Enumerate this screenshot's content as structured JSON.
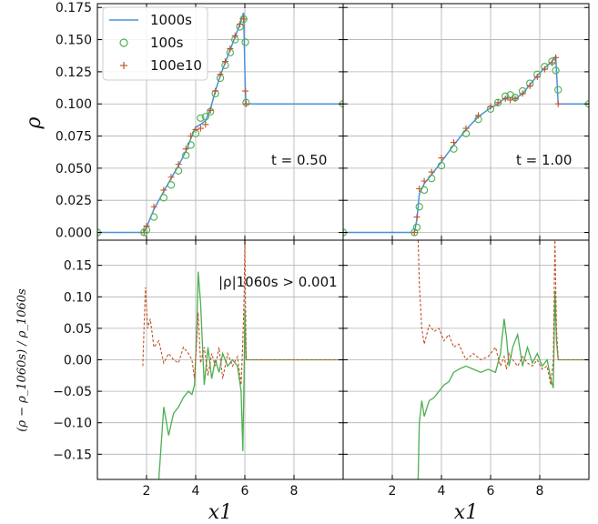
{
  "chart_data": {
    "type": "line",
    "layout": "2x2 grid, shared axes",
    "xlim": [
      0,
      10
    ],
    "x_ticks": [
      2,
      4,
      6,
      8
    ],
    "xlabel": "x1",
    "top": {
      "ylabel": "ρ",
      "ylim": [
        -0.006,
        0.178
      ],
      "yticks": [
        0.0,
        0.025,
        0.05,
        0.075,
        0.1,
        0.125,
        0.15,
        0.175
      ],
      "ytick_labels": [
        "0.000",
        "0.025",
        "0.050",
        "0.075",
        "0.100",
        "0.125",
        "0.150",
        "0.175"
      ]
    },
    "bottom": {
      "ylabel": "(ρ − ρ_1060s) / ρ_1060s",
      "ylim": [
        -0.19,
        0.19
      ],
      "yticks": [
        -0.15,
        -0.1,
        -0.05,
        0.0,
        0.05,
        0.1,
        0.15
      ],
      "ytick_labels": [
        "−0.15",
        "−0.10",
        "−0.05",
        "0.00",
        "0.05",
        "0.10",
        "0.15"
      ]
    },
    "legend": {
      "position": "upper-left",
      "entries": [
        {
          "label": "1000s",
          "style": "line",
          "color": "#4a90d9"
        },
        {
          "label": "100s",
          "style": "open-circle",
          "color": "#4caf50"
        },
        {
          "label": "100e10",
          "style": "plus",
          "color": "#c0562b"
        }
      ]
    },
    "annotations": {
      "t_left": "t = 0.50",
      "t_right": "t = 1.00",
      "threshold": "|ρ|1060s > 0.001"
    },
    "panels": [
      {
        "time": "t = 0.50",
        "density": {
          "x": [
            0,
            1.9,
            2.0,
            2.3,
            2.7,
            3.0,
            3.3,
            3.6,
            3.8,
            4.0,
            4.2,
            4.4,
            4.6,
            4.8,
            5.0,
            5.2,
            5.4,
            5.6,
            5.8,
            5.95,
            6.02,
            6.05,
            10
          ],
          "1000s": [
            0.0,
            0.0,
            0.004,
            0.018,
            0.032,
            0.042,
            0.052,
            0.063,
            0.073,
            0.082,
            0.084,
            0.087,
            0.096,
            0.11,
            0.122,
            0.132,
            0.142,
            0.152,
            0.162,
            0.171,
            0.11,
            0.1,
            0.1
          ],
          "100s": [
            0.0,
            0.0,
            0.002,
            0.012,
            0.027,
            0.037,
            0.048,
            0.06,
            0.068,
            0.077,
            0.089,
            0.09,
            0.094,
            0.108,
            0.12,
            0.13,
            0.14,
            0.15,
            0.16,
            0.166,
            0.148,
            0.101,
            0.1
          ],
          "100e10": [
            0.0,
            0.0,
            0.005,
            0.02,
            0.033,
            0.043,
            0.053,
            0.065,
            0.075,
            0.08,
            0.081,
            0.084,
            0.095,
            0.11,
            0.123,
            0.133,
            0.143,
            0.153,
            0.162,
            0.166,
            0.11,
            0.1,
            0.1
          ]
        },
        "rel_diff": {
          "x": [
            1.85,
            1.95,
            2.05,
            2.15,
            2.3,
            2.5,
            2.7,
            2.9,
            3.1,
            3.3,
            3.5,
            3.7,
            3.85,
            3.95,
            4.05,
            4.1,
            4.2,
            4.35,
            4.5,
            4.65,
            4.8,
            4.95,
            5.1,
            5.3,
            5.5,
            5.7,
            5.85,
            5.92,
            5.97,
            6.0,
            6.05,
            6.15,
            10
          ],
          "100s": [
            null,
            null,
            null,
            null,
            null,
            -0.19,
            -0.075,
            -0.12,
            -0.085,
            -0.075,
            -0.06,
            -0.05,
            -0.055,
            -0.04,
            0.05,
            0.14,
            0.09,
            -0.04,
            0.02,
            -0.03,
            0.0,
            -0.02,
            0.01,
            -0.01,
            0.0,
            -0.01,
            -0.05,
            -0.145,
            -0.02,
            0.08,
            0.0,
            0.0,
            0.0
          ],
          "100e10": [
            -0.01,
            0.115,
            0.05,
            0.065,
            0.02,
            0.03,
            -0.005,
            0.01,
            0.0,
            -0.005,
            0.02,
            0.01,
            0.0,
            -0.03,
            0.035,
            0.075,
            -0.005,
            0.02,
            -0.025,
            0.01,
            -0.01,
            0.02,
            -0.03,
            0.01,
            -0.01,
            0.005,
            -0.04,
            0.03,
            0.1,
            0.19,
            0.0,
            0.0,
            0.0
          ]
        }
      },
      {
        "time": "t = 1.00",
        "density": {
          "x": [
            0,
            2.9,
            3.0,
            3.1,
            3.3,
            3.6,
            4.0,
            4.5,
            5.0,
            5.5,
            6.0,
            6.3,
            6.6,
            6.8,
            7.0,
            7.3,
            7.6,
            7.9,
            8.2,
            8.5,
            8.65,
            8.75,
            10
          ],
          "1000s": [
            0.0,
            0.0,
            0.01,
            0.03,
            0.038,
            0.045,
            0.055,
            0.068,
            0.08,
            0.09,
            0.097,
            0.1,
            0.105,
            0.105,
            0.104,
            0.108,
            0.115,
            0.122,
            0.128,
            0.133,
            0.137,
            0.1,
            0.1
          ],
          "100s": [
            0.0,
            0.0,
            0.004,
            0.02,
            0.033,
            0.042,
            0.052,
            0.065,
            0.077,
            0.088,
            0.096,
            0.101,
            0.106,
            0.107,
            0.105,
            0.11,
            0.116,
            0.123,
            0.129,
            0.133,
            0.126,
            0.111,
            0.1
          ],
          "100e10": [
            0.0,
            0.0,
            0.012,
            0.034,
            0.04,
            0.047,
            0.058,
            0.07,
            0.081,
            0.091,
            0.098,
            0.101,
            0.104,
            0.103,
            0.104,
            0.108,
            0.114,
            0.121,
            0.127,
            0.132,
            0.136,
            0.1,
            0.1
          ]
        },
        "rel_diff": {
          "x": [
            3.05,
            3.1,
            3.2,
            3.3,
            3.5,
            3.7,
            3.9,
            4.1,
            4.3,
            4.5,
            4.7,
            5.0,
            5.3,
            5.6,
            5.9,
            6.2,
            6.4,
            6.55,
            6.65,
            6.75,
            6.9,
            7.1,
            7.3,
            7.5,
            7.7,
            7.9,
            8.1,
            8.3,
            8.45,
            8.55,
            8.62,
            8.68,
            8.75,
            8.85,
            10
          ],
          "100s": [
            -0.19,
            -0.1,
            -0.065,
            -0.09,
            -0.065,
            -0.06,
            -0.05,
            -0.04,
            -0.035,
            -0.02,
            -0.015,
            -0.01,
            -0.015,
            -0.02,
            -0.015,
            -0.02,
            0.01,
            0.065,
            0.035,
            -0.01,
            0.02,
            0.04,
            -0.01,
            0.02,
            -0.005,
            0.01,
            -0.01,
            0.0,
            -0.03,
            -0.045,
            0.11,
            0.03,
            0.0,
            0.0,
            0.0
          ],
          "100e10": [
            0.19,
            0.12,
            0.05,
            0.025,
            0.055,
            0.045,
            0.05,
            0.03,
            0.04,
            0.02,
            0.025,
            0.0,
            0.01,
            0.0,
            0.005,
            0.02,
            -0.01,
            0.005,
            -0.015,
            0.01,
            0.0,
            -0.01,
            0.005,
            -0.005,
            -0.01,
            0.0,
            -0.015,
            -0.01,
            -0.04,
            0.0,
            0.19,
            0.05,
            0.0,
            0.0,
            0.0
          ]
        }
      }
    ]
  },
  "colors": {
    "line_1000s": "#4a90d9",
    "circle_100s": "#4caf50",
    "plus_100e10": "#c0562b",
    "grid": "#b0b0b0"
  }
}
